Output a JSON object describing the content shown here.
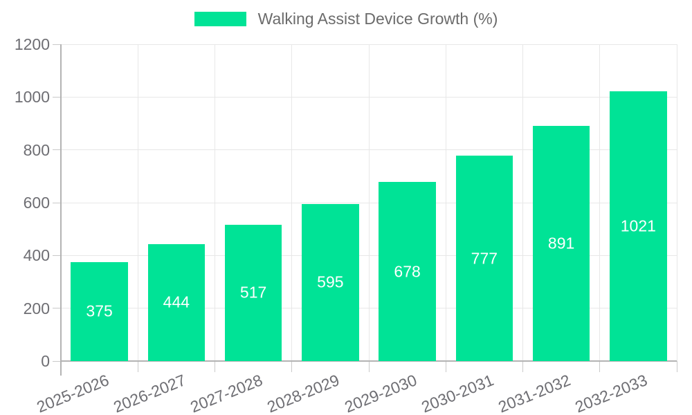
{
  "chart_data": {
    "type": "bar",
    "title": "Walking Assist Device Growth (%)",
    "categories": [
      "2025-2026",
      "2026-2027",
      "2027-2028",
      "2028-2029",
      "2029-2030",
      "2030-2031",
      "2031-2032",
      "2032-2033"
    ],
    "values": [
      375,
      444,
      517,
      595,
      678,
      777,
      891,
      1021
    ],
    "value_labels_shown": true,
    "xlabel": "",
    "ylabel": "",
    "ylim": [
      0,
      1200
    ],
    "yticks": [
      0,
      200,
      400,
      600,
      800,
      1000,
      1200
    ],
    "grid": true,
    "legend_position": "top",
    "colors": {
      "bar": "#00E396",
      "value_label": "#FFFFFF",
      "grid_line": "#E7E7E7",
      "axis_line": "#B3B3B3",
      "tick_mark": "#C9C9C9",
      "tick_label": "#6E6E73",
      "legend_label": "#6B6B6B"
    }
  }
}
